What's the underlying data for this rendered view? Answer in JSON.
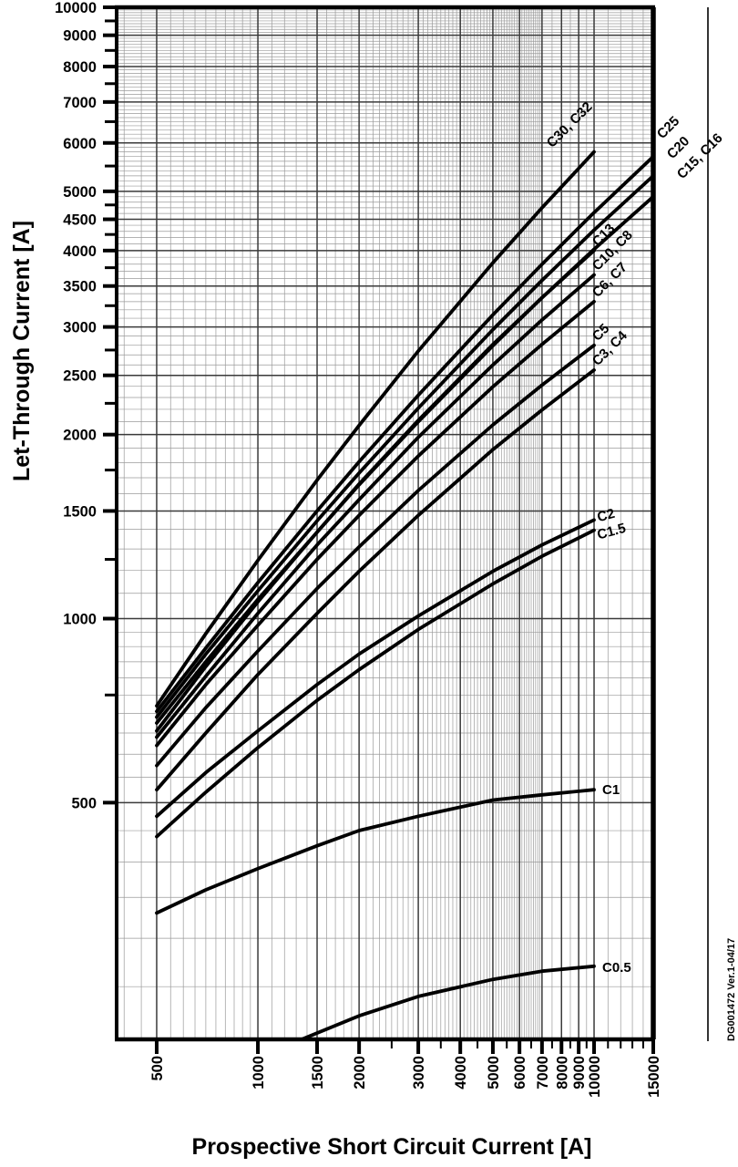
{
  "figure": {
    "doc_ref": "DG001472  Ver.1-04/17"
  },
  "chart_data": {
    "type": "line",
    "title": "",
    "xlabel": "Prospective Short Circuit Current [A]",
    "ylabel": "Let-Through Current [A]",
    "x_scale": "log",
    "y_scale": "log",
    "xlim": [
      380,
      15000
    ],
    "ylim": [
      205,
      10000
    ],
    "grid": "log major and minor, both axes",
    "legend_position": "labels at curve ends",
    "x_ticks": [
      500,
      1000,
      1500,
      2000,
      3000,
      4000,
      5000,
      6000,
      7000,
      8000,
      9000,
      10000,
      15000
    ],
    "y_ticks": [
      500,
      1000,
      1500,
      2000,
      2500,
      3000,
      3500,
      4000,
      4500,
      5000,
      6000,
      7000,
      8000,
      9000,
      10000
    ],
    "x_tick_labels": [
      "500",
      "1000",
      "1500",
      "2000",
      "3000",
      "4000",
      "5000",
      "6000",
      "7000",
      "8000",
      "9000",
      "10000",
      "15000"
    ],
    "y_tick_labels": [
      "500",
      "1000",
      "1500",
      "2000",
      "2500",
      "3000",
      "3500",
      "4000",
      "4500",
      "5000",
      "6000",
      "7000",
      "8000",
      "9000",
      "10000"
    ],
    "series": [
      {
        "name": "C30, C32",
        "label_position": "end-inside",
        "points": [
          [
            500,
            720
          ],
          [
            700,
            945
          ],
          [
            1000,
            1245
          ],
          [
            1500,
            1685
          ],
          [
            2000,
            2070
          ],
          [
            3000,
            2740
          ],
          [
            5000,
            3820
          ],
          [
            7000,
            4700
          ],
          [
            10000,
            5800
          ]
        ]
      },
      {
        "name": "C25",
        "label_position": "right-outside",
        "points": [
          [
            500,
            705
          ],
          [
            700,
            895
          ],
          [
            1000,
            1145
          ],
          [
            1500,
            1500
          ],
          [
            2000,
            1805
          ],
          [
            3000,
            2320
          ],
          [
            5000,
            3140
          ],
          [
            7000,
            3800
          ],
          [
            10000,
            4615
          ],
          [
            15000,
            5700
          ]
        ]
      },
      {
        "name": "C20",
        "label_position": "right-outside",
        "points": [
          [
            500,
            690
          ],
          [
            700,
            875
          ],
          [
            1000,
            1110
          ],
          [
            1500,
            1445
          ],
          [
            2000,
            1730
          ],
          [
            3000,
            2210
          ],
          [
            5000,
            2970
          ],
          [
            7000,
            3575
          ],
          [
            10000,
            4320
          ],
          [
            15000,
            5300
          ]
        ]
      },
      {
        "name": "C15, C16",
        "label_position": "right-outside",
        "points": [
          [
            500,
            675
          ],
          [
            700,
            850
          ],
          [
            1000,
            1075
          ],
          [
            1500,
            1385
          ],
          [
            2000,
            1655
          ],
          [
            3000,
            2100
          ],
          [
            5000,
            2795
          ],
          [
            7000,
            3350
          ],
          [
            10000,
            4020
          ],
          [
            15000,
            4900
          ]
        ]
      },
      {
        "name": "C13",
        "label_position": "end-inside",
        "points": [
          [
            500,
            655
          ],
          [
            700,
            835
          ],
          [
            1000,
            1065
          ],
          [
            1500,
            1385
          ],
          [
            2000,
            1660
          ],
          [
            3000,
            2110
          ],
          [
            5000,
            2810
          ],
          [
            7000,
            3350
          ],
          [
            10000,
            4000
          ]
        ]
      },
      {
        "name": "C10, C8",
        "label_position": "end-inside",
        "points": [
          [
            500,
            640
          ],
          [
            700,
            805
          ],
          [
            1000,
            1020
          ],
          [
            1500,
            1320
          ],
          [
            2000,
            1565
          ],
          [
            3000,
            1980
          ],
          [
            5000,
            2600
          ],
          [
            7000,
            3080
          ],
          [
            10000,
            3650
          ]
        ]
      },
      {
        "name": "C6, C7",
        "label_position": "end-inside",
        "points": [
          [
            500,
            620
          ],
          [
            700,
            780
          ],
          [
            1000,
            975
          ],
          [
            1500,
            1250
          ],
          [
            2000,
            1475
          ],
          [
            3000,
            1845
          ],
          [
            5000,
            2395
          ],
          [
            7000,
            2810
          ],
          [
            10000,
            3300
          ]
        ]
      },
      {
        "name": "C5",
        "label_position": "end-inside",
        "points": [
          [
            500,
            575
          ],
          [
            700,
            715
          ],
          [
            1000,
            885
          ],
          [
            1500,
            1120
          ],
          [
            2000,
            1310
          ],
          [
            3000,
            1620
          ],
          [
            5000,
            2075
          ],
          [
            7000,
            2410
          ],
          [
            10000,
            2800
          ]
        ]
      },
      {
        "name": "C3, C4",
        "label_position": "end-inside",
        "points": [
          [
            500,
            525
          ],
          [
            700,
            650
          ],
          [
            1000,
            810
          ],
          [
            1500,
            1020
          ],
          [
            2000,
            1195
          ],
          [
            3000,
            1475
          ],
          [
            5000,
            1890
          ],
          [
            7000,
            2195
          ],
          [
            10000,
            2550
          ]
        ]
      },
      {
        "name": "C2",
        "label_position": "end-inside",
        "points": [
          [
            500,
            475
          ],
          [
            700,
            560
          ],
          [
            1000,
            655
          ],
          [
            1500,
            780
          ],
          [
            2000,
            875
          ],
          [
            3000,
            1010
          ],
          [
            5000,
            1195
          ],
          [
            7000,
            1320
          ],
          [
            10000,
            1450
          ]
        ]
      },
      {
        "name": "C1.5",
        "label_position": "end-inside",
        "points": [
          [
            500,
            440
          ],
          [
            700,
            520
          ],
          [
            1000,
            615
          ],
          [
            1500,
            735
          ],
          [
            2000,
            825
          ],
          [
            3000,
            960
          ],
          [
            5000,
            1140
          ],
          [
            7000,
            1265
          ],
          [
            10000,
            1395
          ]
        ]
      },
      {
        "name": "C1",
        "label_position": "end-inside",
        "points": [
          [
            500,
            330
          ],
          [
            700,
            360
          ],
          [
            1000,
            390
          ],
          [
            1500,
            425
          ],
          [
            2000,
            450
          ],
          [
            3000,
            475
          ],
          [
            5000,
            505
          ],
          [
            7000,
            515
          ],
          [
            10000,
            525
          ]
        ]
      },
      {
        "name": "C0.5",
        "label_position": "end-inside",
        "points": [
          [
            1350,
            205
          ],
          [
            2000,
            224
          ],
          [
            3000,
            241
          ],
          [
            5000,
            257
          ],
          [
            7000,
            265
          ],
          [
            10000,
            270
          ]
        ]
      }
    ],
    "colors": {
      "curve": "#000000",
      "grid_major": "#3a3a3a",
      "grid_minor": "#9a9a9a",
      "frame": "#000000"
    }
  }
}
